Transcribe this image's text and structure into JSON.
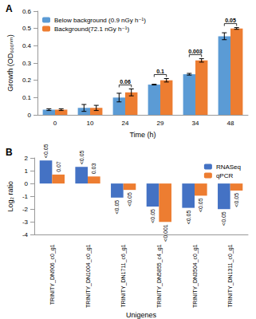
{
  "chart_data": [
    {
      "type": "bar",
      "panel_label": "A",
      "x_label": "Time (h)",
      "y_label": "Growth (OD₆₀₀ₙₘ)",
      "categories": [
        "0",
        "10",
        "24",
        "29",
        "34",
        "48"
      ],
      "series": [
        {
          "name": "Below background (0.9 nGy h⁻¹)",
          "color": "#5b9bd5",
          "values": [
            0.03,
            0.04,
            0.1,
            0.175,
            0.235,
            0.455
          ],
          "errors": [
            0.005,
            0.02,
            0.025,
            0.002,
            0.005,
            0.02
          ]
        },
        {
          "name": "Background(72.1 nGy h⁻¹)",
          "color": "#ed7d31",
          "values": [
            0.03,
            0.04,
            0.13,
            0.2,
            0.315,
            0.5
          ],
          "errors": [
            0.005,
            0.015,
            0.02,
            0.01,
            0.01,
            0.005
          ]
        }
      ],
      "p_values": [
        null,
        null,
        "0.06",
        "0.1",
        "0.003",
        "0.05"
      ],
      "ylim": [
        0,
        0.6
      ],
      "yticks": [
        0,
        0.1,
        0.2,
        0.3,
        0.4,
        0.5,
        0.6
      ],
      "grid": false,
      "legend": "upper left"
    },
    {
      "type": "bar",
      "panel_label": "B",
      "x_label": "Unigenes",
      "y_label": "Log₂ ratio",
      "categories": [
        "TRINITY_DN906_c0_g1",
        "TRINITY_DN1004_c0_g1",
        "TRINITY_DN1711_c6_g1",
        "TRINITY_DN5855_c4_g1",
        "TRINITY_DN3504_c0_g1",
        "TRINITY_DN1311_c0_g1"
      ],
      "series": [
        {
          "name": "RNASeq",
          "color": "#4472c4",
          "values": [
            1.8,
            1.3,
            -1.1,
            -1.8,
            -1.9,
            -2.0
          ],
          "p_values": [
            "<0.05",
            "<0.05",
            "<0.05",
            "<0.05",
            "<0.05",
            "<0.05"
          ]
        },
        {
          "name": "qPCR",
          "color": "#ed7d31",
          "values": [
            0.7,
            0.55,
            -0.5,
            -3.0,
            -0.95,
            -0.55
          ],
          "p_values": [
            "0.07",
            "0.03",
            "<0.05",
            "<0.001",
            "<0.05",
            "<0.05"
          ]
        }
      ],
      "ylim": [
        -4,
        2
      ],
      "yticks": [
        -4,
        -3,
        -2,
        -1,
        0,
        1,
        2
      ],
      "grid": false,
      "legend": "upper right"
    }
  ]
}
